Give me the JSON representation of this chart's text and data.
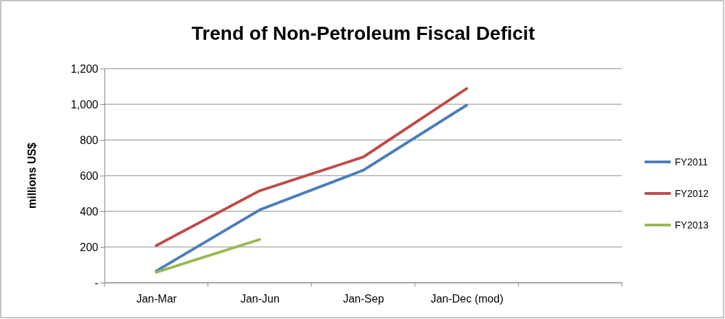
{
  "chart_data": {
    "type": "line",
    "title": "Trend of Non-Petroleum Fiscal Deficit",
    "ylabel": "millions US$",
    "categories": [
      "Jan-Mar",
      "Jan-Jun",
      "Jan-Sep",
      "Jan-Dec (mod)",
      null
    ],
    "series": [
      {
        "name": "FY2011",
        "color": "#4a7ebb",
        "values": [
          65,
          408,
          630,
          995,
          null
        ]
      },
      {
        "name": "FY2012",
        "color": "#be4b48",
        "values": [
          208,
          515,
          704,
          1088,
          null
        ]
      },
      {
        "name": "FY2013",
        "color": "#98b954",
        "values": [
          58,
          242,
          null,
          null,
          null
        ]
      }
    ],
    "ylim": [
      0,
      1200
    ],
    "yticks": [
      {
        "value": 0,
        "label": "-"
      },
      200,
      400,
      600,
      800,
      {
        "value": 1000,
        "label": "1,000"
      },
      {
        "value": 1200,
        "label": "1,200"
      }
    ],
    "grid": "y",
    "legend": "right",
    "marker": "none",
    "line_style": "solid"
  }
}
